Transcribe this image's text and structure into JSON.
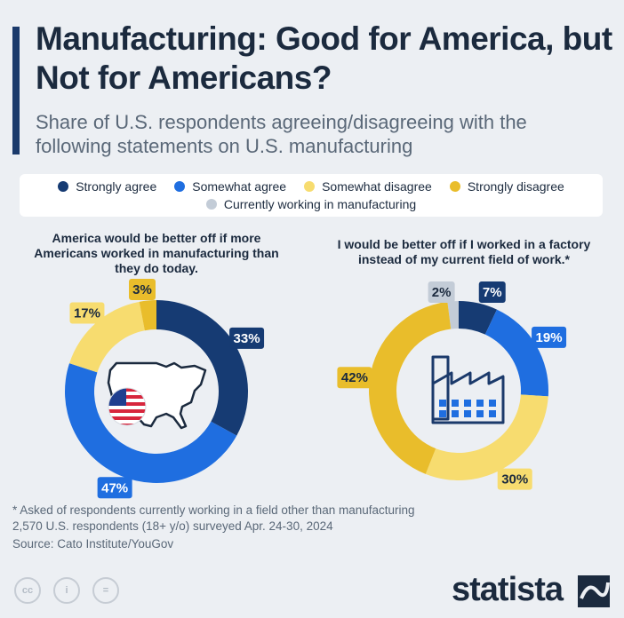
{
  "title": "Manufacturing: Good for America, but Not for Americans?",
  "subtitle": "Share of U.S. respondents agreeing/disagreeing with the following statements on U.S. manufacturing",
  "legend": [
    {
      "label": "Strongly agree",
      "color": "#163b73"
    },
    {
      "label": "Somewhat agree",
      "color": "#1f6ee0"
    },
    {
      "label": "Somewhat disagree",
      "color": "#f7dc6f"
    },
    {
      "label": "Strongly disagree",
      "color": "#e9bd2b"
    },
    {
      "label": "Currently working in manufacturing",
      "color": "#c3ccd7"
    }
  ],
  "chart_data": [
    {
      "type": "pie",
      "variant": "donut",
      "title": "America would be better off if more Americans worked in manufacturing than they do today.",
      "categories": [
        "Strongly agree",
        "Somewhat agree",
        "Somewhat disagree",
        "Strongly disagree"
      ],
      "values": [
        33,
        47,
        17,
        3
      ],
      "labels": [
        "33%",
        "47%",
        "17%",
        "3%"
      ],
      "icon": "usa-map-with-flag"
    },
    {
      "type": "pie",
      "variant": "donut",
      "title": "I would be better off if I worked in a factory instead of my current field of work.*",
      "categories": [
        "Strongly agree",
        "Somewhat agree",
        "Somewhat disagree",
        "Strongly disagree",
        "Currently working in manufacturing"
      ],
      "values": [
        7,
        19,
        30,
        42,
        2
      ],
      "labels": [
        "7%",
        "19%",
        "30%",
        "42%",
        "2%"
      ],
      "icon": "factory"
    }
  ],
  "footnotes": {
    "note": "* Asked of respondents currently working in a field other than manufacturing",
    "sample": "2,570 U.S. respondents (18+ y/o) surveyed Apr. 24-30, 2024",
    "source": "Source: Cato Institute/YouGov"
  },
  "license_icons": [
    "cc",
    "by",
    "nd"
  ],
  "brand": "statista"
}
